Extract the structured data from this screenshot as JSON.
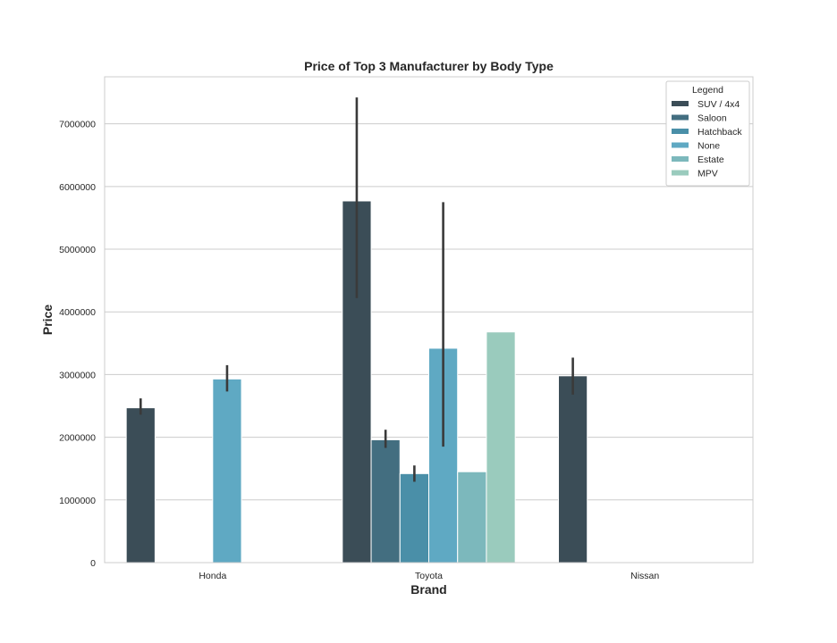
{
  "chart_data": {
    "type": "bar",
    "title": "Price of Top 3 Manufacturer by Body Type",
    "xlabel": "Brand",
    "ylabel": "Price",
    "categories": [
      "Honda",
      "Toyota",
      "Nissan"
    ],
    "ylim": [
      0,
      7750000
    ],
    "yticks": [
      0,
      1000000,
      2000000,
      3000000,
      4000000,
      5000000,
      6000000,
      7000000
    ],
    "ytick_labels": [
      "0",
      "1000000",
      "2000000",
      "3000000",
      "4000000",
      "5000000",
      "6000000",
      "7000000"
    ],
    "grid": true,
    "legend": {
      "title": "Legend",
      "placement": "top-right"
    },
    "series": [
      {
        "name": "SUV / 4x4",
        "color": "#3b4d57",
        "values": [
          2470000,
          5770000,
          2980000
        ],
        "err_low": [
          2360000,
          4220000,
          2680000
        ],
        "err_high": [
          2620000,
          7420000,
          3270000
        ]
      },
      {
        "name": "Saloon",
        "color": "#436e80",
        "values": [
          null,
          1960000,
          null
        ],
        "err_low": [
          null,
          1830000,
          null
        ],
        "err_high": [
          null,
          2120000,
          null
        ]
      },
      {
        "name": "Hatchback",
        "color": "#4a8fa8",
        "values": [
          null,
          1420000,
          null
        ],
        "err_low": [
          null,
          1290000,
          null
        ],
        "err_high": [
          null,
          1550000,
          null
        ]
      },
      {
        "name": "None",
        "color": "#5fa9c3",
        "values": [
          2930000,
          3420000,
          null
        ],
        "err_low": [
          2730000,
          1850000,
          null
        ],
        "err_high": [
          3150000,
          5750000,
          null
        ]
      },
      {
        "name": "Estate",
        "color": "#7cb8bc",
        "values": [
          null,
          1450000,
          null
        ],
        "err_low": [
          null,
          null,
          null
        ],
        "err_high": [
          null,
          null,
          null
        ]
      },
      {
        "name": "MPV",
        "color": "#9acbbd",
        "values": [
          null,
          3680000,
          null
        ],
        "err_low": [
          null,
          null,
          null
        ],
        "err_high": [
          null,
          null,
          null
        ]
      }
    ]
  }
}
